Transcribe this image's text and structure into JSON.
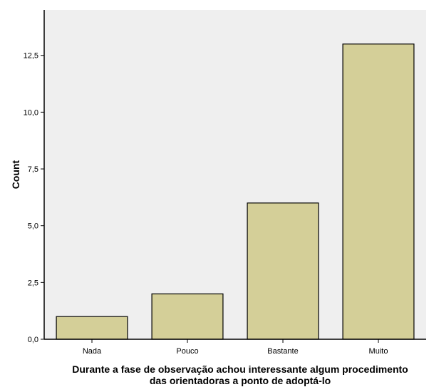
{
  "chart_data": {
    "type": "bar",
    "categories": [
      "Nada",
      "Pouco",
      "Bastante",
      "Muito"
    ],
    "values": [
      1,
      2,
      6,
      13
    ],
    "title": "",
    "xlabel_lines": [
      "Durante a fase de observação achou interessante algum procedimento",
      "das orientadoras a ponto de adoptá-lo"
    ],
    "ylabel": "Count",
    "ylim": [
      0,
      14.5
    ],
    "yticks": [
      0,
      2.5,
      5,
      7.5,
      10,
      12.5
    ],
    "ytick_labels": [
      "0,0",
      "2,5",
      "5,0",
      "7,5",
      "10,0",
      "12,5"
    ],
    "grid": false,
    "legend": "none",
    "colors": {
      "plot_background": "#efefef",
      "bar_fill": "#d4cf98",
      "bar_stroke": "#000000",
      "axis": "#000000"
    }
  }
}
